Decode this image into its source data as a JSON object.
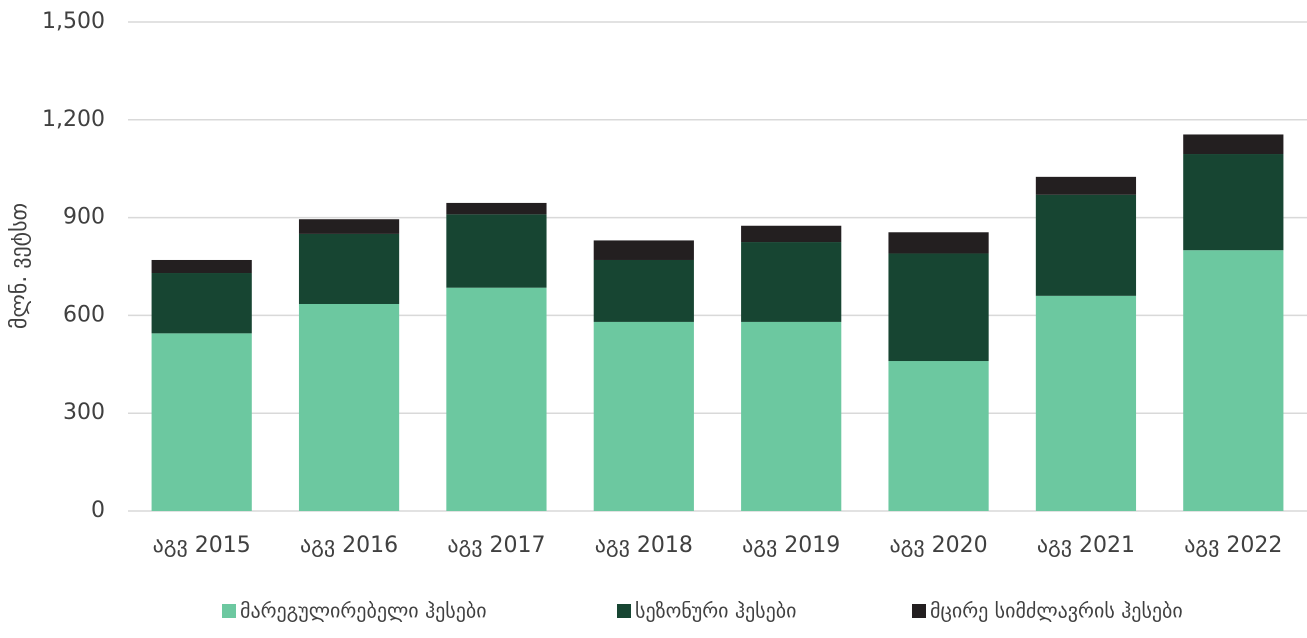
{
  "chart_data": {
    "type": "stacked_bar",
    "y_label": "მლნ. ვეტსთ",
    "categories": [
      "აგვ 2015",
      "აგვ 2016",
      "აგვ 2017",
      "აგვ 2018",
      "აგვ 2019",
      "აგვ 2020",
      "აგვ 2021",
      "აგვ 2022"
    ],
    "series": [
      {
        "name": "მარეგულირებელი ჰესები",
        "color": "#6cc8a0",
        "values": [
          545,
          635,
          685,
          580,
          580,
          460,
          660,
          800
        ]
      },
      {
        "name": "სეზონური ჰესები",
        "color": "#174532",
        "values": [
          185,
          215,
          225,
          190,
          245,
          330,
          310,
          295
        ]
      },
      {
        "name": "მცირე სიმძლავრის ჰესები",
        "color": "#231f20",
        "values": [
          40,
          45,
          35,
          60,
          50,
          65,
          55,
          60
        ]
      }
    ],
    "ylim": [
      0,
      1500
    ],
    "yticks": [
      0,
      300,
      600,
      900,
      {
        "value": 1200,
        "label": "1,200"
      },
      {
        "value": 1500,
        "label": "1,500"
      }
    ],
    "grid": true,
    "legend": "bottom"
  }
}
